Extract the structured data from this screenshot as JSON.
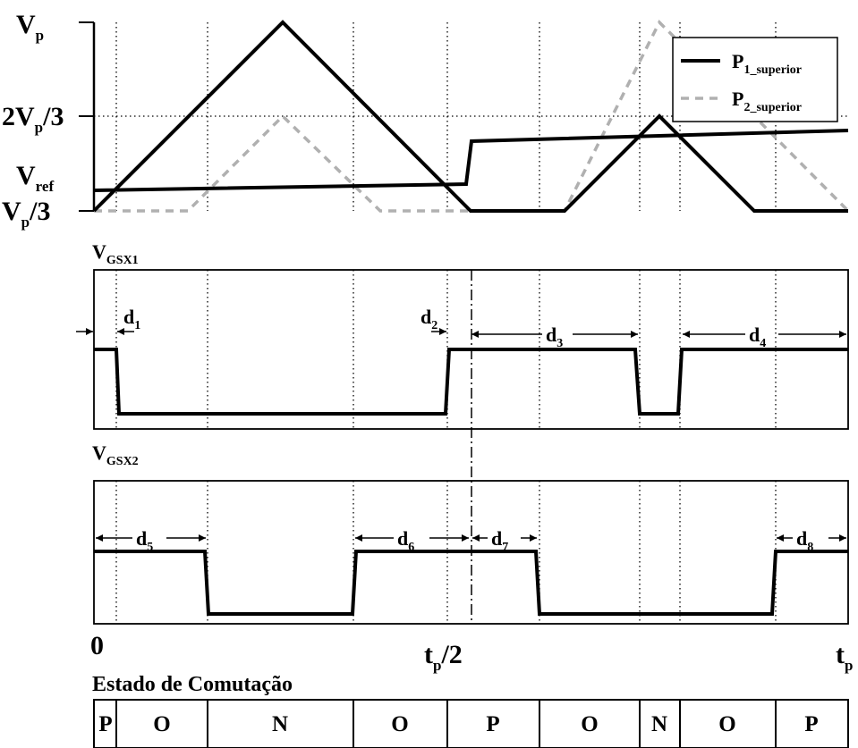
{
  "top_plot": {
    "y_labels": {
      "vp": {
        "main": "V",
        "sub": "p"
      },
      "two_vp_3": {
        "pre": "2V",
        "sub": "p",
        "post": "/3"
      },
      "vref": {
        "main": "V",
        "sub": "ref"
      },
      "vp_3": {
        "main": "V",
        "sub": "p",
        "post": "/3"
      }
    },
    "legend": [
      {
        "main": "P",
        "sub": "1_superior",
        "style": "solid",
        "color": "#000000"
      },
      {
        "main": "P",
        "sub": "2_superior",
        "style": "dashed",
        "color": "#b0b0b0"
      }
    ]
  },
  "gate1": {
    "label": {
      "main": "V",
      "sub": "GSX1"
    },
    "intervals": [
      {
        "main": "d",
        "sub": "1"
      },
      {
        "main": "d",
        "sub": "2"
      },
      {
        "main": "d",
        "sub": "3"
      },
      {
        "main": "d",
        "sub": "4"
      }
    ]
  },
  "gate2": {
    "label": {
      "main": "V",
      "sub": "GSX2"
    },
    "intervals": [
      {
        "main": "d",
        "sub": "5"
      },
      {
        "main": "d",
        "sub": "6"
      },
      {
        "main": "d",
        "sub": "7"
      },
      {
        "main": "d",
        "sub": "8"
      }
    ]
  },
  "time_axis": {
    "start": "0",
    "mid": {
      "main": "t",
      "sub": "p",
      "post": "/2"
    },
    "end": {
      "main": "t",
      "sub": "p"
    }
  },
  "switching": {
    "title": "Estado de Comutação",
    "states": [
      "P",
      "O",
      "N",
      "O",
      "P",
      "O",
      "N",
      "O",
      "P"
    ]
  },
  "colors": {
    "carrier_1": "#000000",
    "carrier_2": "#b0b0b0",
    "reference": "#000000",
    "grid": "#000000"
  }
}
